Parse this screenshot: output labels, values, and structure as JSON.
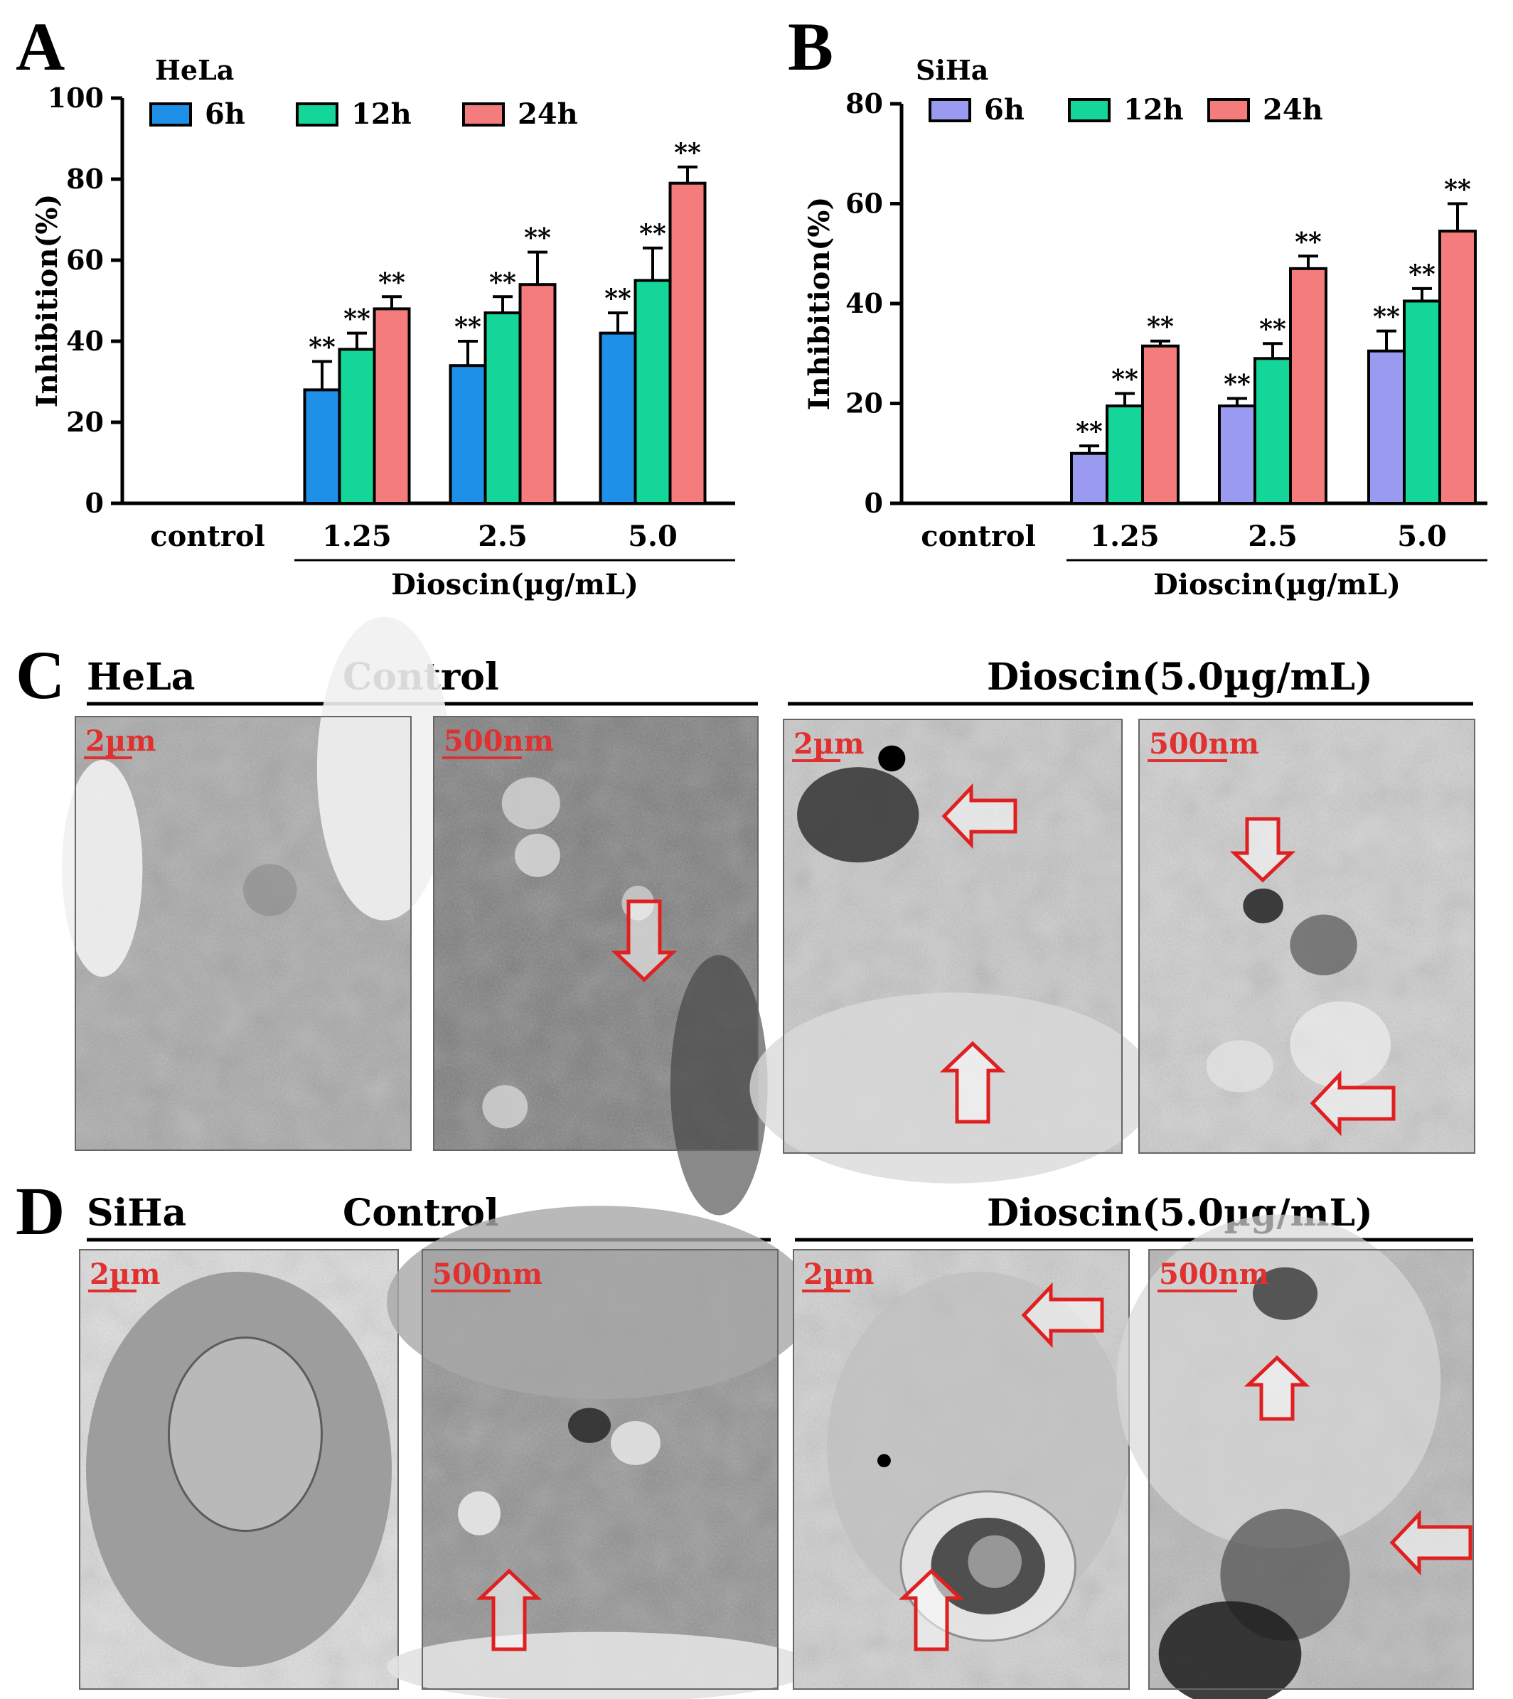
{
  "chart_data": [
    {
      "panel": "A",
      "type": "bar",
      "title": "HeLa",
      "categories": [
        "control",
        "1.25",
        "2.5",
        "5.0"
      ],
      "group_label": "Dioscin(µg/mL)",
      "ylabel": "Inhibition(%)",
      "ylim": [
        0,
        100
      ],
      "yticks": [
        0,
        20,
        40,
        60,
        80,
        100
      ],
      "legend_placement": "top",
      "series": [
        {
          "name": "6h",
          "color": "#1e90e8",
          "values": [
            0,
            28,
            34,
            42
          ],
          "errors": [
            0,
            7,
            6,
            5
          ],
          "sig": [
            "",
            "**",
            "**",
            "**"
          ]
        },
        {
          "name": "12h",
          "color": "#14d699",
          "values": [
            0,
            38,
            47,
            55
          ],
          "errors": [
            0,
            4,
            4,
            8
          ],
          "sig": [
            "",
            "**",
            "**",
            "**"
          ]
        },
        {
          "name": "24h",
          "color": "#f47c7c",
          "values": [
            0,
            48,
            54,
            79
          ],
          "errors": [
            0,
            3,
            8,
            4
          ],
          "sig": [
            "",
            "**",
            "**",
            "**"
          ]
        }
      ]
    },
    {
      "panel": "B",
      "type": "bar",
      "title": "SiHa",
      "categories": [
        "control",
        "1.25",
        "2.5",
        "5.0"
      ],
      "group_label": "Dioscin(µg/mL)",
      "ylabel": "Inhibition(%)",
      "ylim": [
        0,
        80
      ],
      "yticks": [
        0,
        20,
        40,
        60,
        80
      ],
      "legend_placement": "top",
      "series": [
        {
          "name": "6h",
          "color": "#9a9af0",
          "values": [
            0,
            10,
            19.5,
            30.5
          ],
          "errors": [
            0,
            1.5,
            1.5,
            4
          ],
          "sig": [
            "",
            "**",
            "**",
            "**"
          ]
        },
        {
          "name": "12h",
          "color": "#14d699",
          "values": [
            0,
            19.5,
            29,
            40.5
          ],
          "errors": [
            0,
            2.5,
            3,
            2.5
          ],
          "sig": [
            "",
            "**",
            "**",
            "**"
          ]
        },
        {
          "name": "24h",
          "color": "#f47c7c",
          "values": [
            0,
            31.5,
            47,
            54.5
          ],
          "errors": [
            0,
            1,
            2.5,
            5.5
          ],
          "sig": [
            "",
            "**",
            "**",
            "**"
          ]
        }
      ]
    }
  ],
  "em_rows": [
    {
      "panel": "C",
      "cell_line": "HeLa",
      "control_label": "Control",
      "treated_label": "Dioscin(5.0µg/mL)",
      "images": [
        {
          "scale": "2µm",
          "group": "control"
        },
        {
          "scale": "500nm",
          "group": "control"
        },
        {
          "scale": "2µm",
          "group": "treated"
        },
        {
          "scale": "500nm",
          "group": "treated"
        }
      ]
    },
    {
      "panel": "D",
      "cell_line": "SiHa",
      "control_label": "Control",
      "treated_label": "Dioscin(5.0µg/mL)",
      "images": [
        {
          "scale": "2µm",
          "group": "control"
        },
        {
          "scale": "500nm",
          "group": "control"
        },
        {
          "scale": "2µm",
          "group": "treated"
        },
        {
          "scale": "500nm",
          "group": "treated"
        }
      ]
    }
  ],
  "colors": {
    "arrow": "#e02020",
    "scale_text": "#e03030",
    "axis": "#000000"
  }
}
